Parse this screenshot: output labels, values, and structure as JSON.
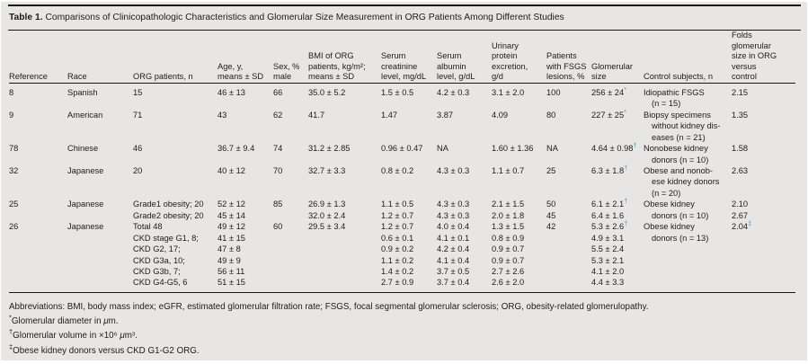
{
  "colors": {
    "panel_background": "#e7e6e4",
    "text": "#1c1c1c",
    "rule": "#161616",
    "marker_blue": "#4698c8"
  },
  "title": {
    "label": "Table 1.",
    "text": " Comparisons of Clinicopathologic Characteristics and Glomerular Size Measurement in ORG Patients Among Different Studies"
  },
  "table": {
    "columns": [
      {
        "id": "reference",
        "lines": [
          "Reference"
        ]
      },
      {
        "id": "race",
        "lines": [
          "Race"
        ]
      },
      {
        "id": "org-patients",
        "lines": [
          "ORG patients, n"
        ]
      },
      {
        "id": "age",
        "lines": [
          "Age, y,",
          "means ± SD"
        ]
      },
      {
        "id": "sex",
        "lines": [
          "Sex, %",
          "male"
        ]
      },
      {
        "id": "bmi",
        "lines": [
          "BMI of ORG",
          "patients, kg/m²;",
          "means ± SD"
        ]
      },
      {
        "id": "serum-creatinine",
        "lines": [
          "Serum",
          "creatinine",
          "level, mg/dL"
        ]
      },
      {
        "id": "serum-albumin",
        "lines": [
          "Serum",
          "albumin",
          "level, g/dL"
        ]
      },
      {
        "id": "urinary-protein",
        "lines": [
          "Urinary",
          "protein",
          "excretion,",
          "g/d"
        ]
      },
      {
        "id": "fsgs",
        "lines": [
          "Patients",
          "with FSGS",
          "lesions, %"
        ]
      },
      {
        "id": "glomerular-size",
        "lines": [
          "Glomerular",
          "size"
        ]
      },
      {
        "id": "control-subjects",
        "lines": [
          "Control subjects, n"
        ],
        "indent_continuation": true
      },
      {
        "id": "folds",
        "lines": [
          "Folds",
          "glomerular",
          "size in ORG",
          "versus",
          "control"
        ]
      }
    ],
    "rows": [
      {
        "cells": [
          [
            "8"
          ],
          [
            "Spanish"
          ],
          [
            "15"
          ],
          [
            "46 ± 13"
          ],
          [
            "66"
          ],
          [
            "35.0 ± 5.2"
          ],
          [
            "1.5 ± 0.5"
          ],
          [
            "4.2 ± 0.3"
          ],
          [
            "3.1 ± 2.0"
          ],
          [
            "100"
          ],
          [
            "256 ± 24*"
          ],
          [
            "Idiopathic FSGS",
            "(n = 15)"
          ],
          [
            "2.15"
          ]
        ]
      },
      {
        "cells": [
          [
            "9"
          ],
          [
            "American"
          ],
          [
            "71"
          ],
          [
            "43"
          ],
          [
            "62"
          ],
          [
            "41.7"
          ],
          [
            "1.47"
          ],
          [
            "3.87"
          ],
          [
            "4.09"
          ],
          [
            "80"
          ],
          [
            "227 ± 25*"
          ],
          [
            "Biopsy specimens",
            "without kidney dis-",
            "eases (n = 21)"
          ],
          [
            "1.35"
          ]
        ]
      },
      {
        "cells": [
          [
            "78"
          ],
          [
            "Chinese"
          ],
          [
            "46"
          ],
          [
            "36.7 ± 9.4"
          ],
          [
            "74"
          ],
          [
            "31.2 ± 2.85"
          ],
          [
            "0.96 ± 0.47"
          ],
          [
            "NA"
          ],
          [
            "1.60 ± 1.36"
          ],
          [
            "NA"
          ],
          [
            "4.64 ± 0.98†"
          ],
          [
            "Nonobese kidney",
            "donors (n = 10)"
          ],
          [
            "1.58"
          ]
        ]
      },
      {
        "cells": [
          [
            "32"
          ],
          [
            "Japanese"
          ],
          [
            "20"
          ],
          [
            "40 ± 12"
          ],
          [
            "70"
          ],
          [
            "32.7 ± 3.3"
          ],
          [
            "0.8 ± 0.2"
          ],
          [
            "4.3 ± 0.3"
          ],
          [
            "1.1 ± 0.7"
          ],
          [
            "25"
          ],
          [
            "6.3 ± 1.8†"
          ],
          [
            "Obese and nonob-",
            "ese kidney donors",
            "(n = 20)"
          ],
          [
            "2.63"
          ]
        ]
      },
      {
        "cells": [
          [
            "25"
          ],
          [
            "Japanese"
          ],
          [
            "Grade1 obesity; 20",
            "Grade2 obesity; 20"
          ],
          [
            "52 ± 12",
            "45 ± 14"
          ],
          [
            "85"
          ],
          [
            "26.9 ± 1.3",
            "32.0 ± 2.4"
          ],
          [
            "1.1 ± 0.5",
            "1.2 ± 0.7"
          ],
          [
            "4.3 ± 0.3",
            "4.3 ± 0.3"
          ],
          [
            "2.1 ± 1.5",
            "2.0 ± 1.8"
          ],
          [
            "50",
            "45"
          ],
          [
            "6.1 ± 2.1†",
            "6.4 ± 1.6"
          ],
          [
            "Obese kidney",
            "donors (n = 10)"
          ],
          [
            "2.10",
            "2.67"
          ]
        ]
      },
      {
        "cells": [
          [
            "26"
          ],
          [
            "Japanese"
          ],
          [
            "Total 48",
            "CKD stage G1, 8;",
            "CKD G2, 17;",
            "CKD G3a, 10;",
            "CKD G3b, 7;",
            "CKD G4-G5, 6"
          ],
          [
            "49 ± 12",
            "41 ± 15",
            "47 ± 8",
            "49 ± 9",
            "56 ± 11",
            "51 ± 15"
          ],
          [
            "60"
          ],
          [
            "29.5 ± 3.4"
          ],
          [
            "1.2 ± 0.7",
            "0.6 ± 0.1",
            "0.9 ± 0.2",
            "1.1 ± 0.2",
            "1.4 ± 0.2",
            "2.7 ± 0.9"
          ],
          [
            "4.0 ± 0.4",
            "4.1 ± 0.1",
            "4.2 ± 0.4",
            "4.1 ± 0.4",
            "3.7 ± 0.5",
            "3.7 ± 0.4"
          ],
          [
            "1.3 ± 1.5",
            "0.8 ± 0.9",
            "0.9 ± 0.7",
            "0.9 ± 0.7",
            "2.7 ± 2.6",
            "2.6 ± 2.0"
          ],
          [
            "42"
          ],
          [
            "5.3 ± 2.6†",
            "4.9 ± 3.1",
            "5.5 ± 2.4",
            "5.3 ± 2.1",
            "4.1 ± 2.0",
            "4.4 ± 3.3"
          ],
          [
            "Obese kidney",
            "donors (n = 13)"
          ],
          [
            "2.04‡"
          ]
        ]
      }
    ]
  },
  "footnotes": [
    "Abbreviations: BMI, body mass index; eGFR, estimated glomerular filtration rate; FSGS, focal segmental glomerular sclerosis; ORG, obesity-related glomerulopathy.",
    "*Glomerular diameter in μm.",
    "†Glomerular volume in ×10⁶ μm³.",
    "‡Obese kidney donors versus CKD G1-G2 ORG."
  ]
}
